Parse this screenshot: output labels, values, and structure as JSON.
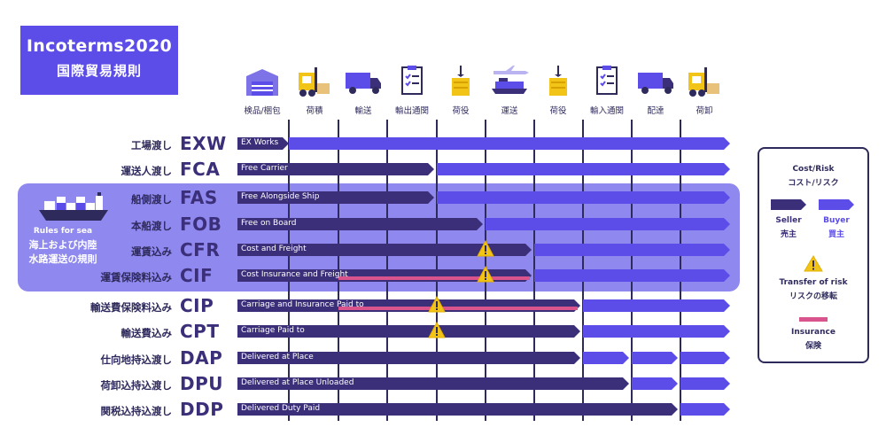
{
  "title": {
    "line1": "Incoterms2020",
    "line2": "国際貿易規則"
  },
  "sea_note": {
    "en": "Rules for sea",
    "ja_line1": "海上および内陸",
    "ja_line2": "水路運送の規則"
  },
  "stages": [
    {
      "label": "検品/梱包",
      "icon": "warehouse-icon"
    },
    {
      "label": "荷積",
      "icon": "forklift-icon"
    },
    {
      "label": "輸送",
      "icon": "truck-icon"
    },
    {
      "label": "輸出通関",
      "icon": "clipboard-icon"
    },
    {
      "label": "荷役",
      "icon": "crane-cargo-icon"
    },
    {
      "label": "運送",
      "icon": "plane-ship-icon"
    },
    {
      "label": "荷役",
      "icon": "crane-cargo-icon"
    },
    {
      "label": "輸入通関",
      "icon": "clipboard-icon"
    },
    {
      "label": "配達",
      "icon": "truck-icon"
    },
    {
      "label": "荷卸",
      "icon": "forklift-icon"
    }
  ],
  "terms": [
    {
      "ja": "工場渡し",
      "code": "EXW",
      "label": "EX Works",
      "sea": false
    },
    {
      "ja": "運送人渡し",
      "code": "FCA",
      "label": "Free Carrier",
      "sea": false
    },
    {
      "ja": "船側渡し",
      "code": "FAS",
      "label": "Free Alongside Ship",
      "sea": true
    },
    {
      "ja": "本船渡し",
      "code": "FOB",
      "label": "Free on Board",
      "sea": true
    },
    {
      "ja": "運賃込み",
      "code": "CFR",
      "label": "Cost and Freight",
      "sea": true
    },
    {
      "ja": "運賃保険料込み",
      "code": "CIF",
      "label": "Cost Insurance and Freight",
      "sea": true
    },
    {
      "ja": "輸送費保険料込み",
      "code": "CIP",
      "label": "Carriage and Insurance Paid to",
      "sea": false
    },
    {
      "ja": "輸送費込み",
      "code": "CPT",
      "label": "Carriage Paid to",
      "sea": false
    },
    {
      "ja": "仕向地持込渡し",
      "code": "DAP",
      "label": "Delivered at Place",
      "sea": false
    },
    {
      "ja": "荷卸込持込渡し",
      "code": "DPU",
      "label": "Delivered at Place Unloaded",
      "sea": false
    },
    {
      "ja": "関税込持込渡し",
      "code": "DDP",
      "label": "Delivered Duty Paid",
      "sea": false
    }
  ],
  "legend": {
    "title_en": "Cost/Risk",
    "title_ja": "コスト/リスク",
    "seller_en": "Seller",
    "seller_ja": "売主",
    "buyer_en": "Buyer",
    "buyer_ja": "買主",
    "risk_en": "Transfer of risk",
    "risk_ja": "リスクの移転",
    "insurance_en": "Insurance",
    "insurance_ja": "保険"
  },
  "colors": {
    "seller": "#3b2f7a",
    "buyer": "#5c4de8",
    "insurance": "#d9548c",
    "risk": "#f2c418",
    "title_bg": "#5c4de8",
    "sea_panel": "#8f88ee"
  }
}
